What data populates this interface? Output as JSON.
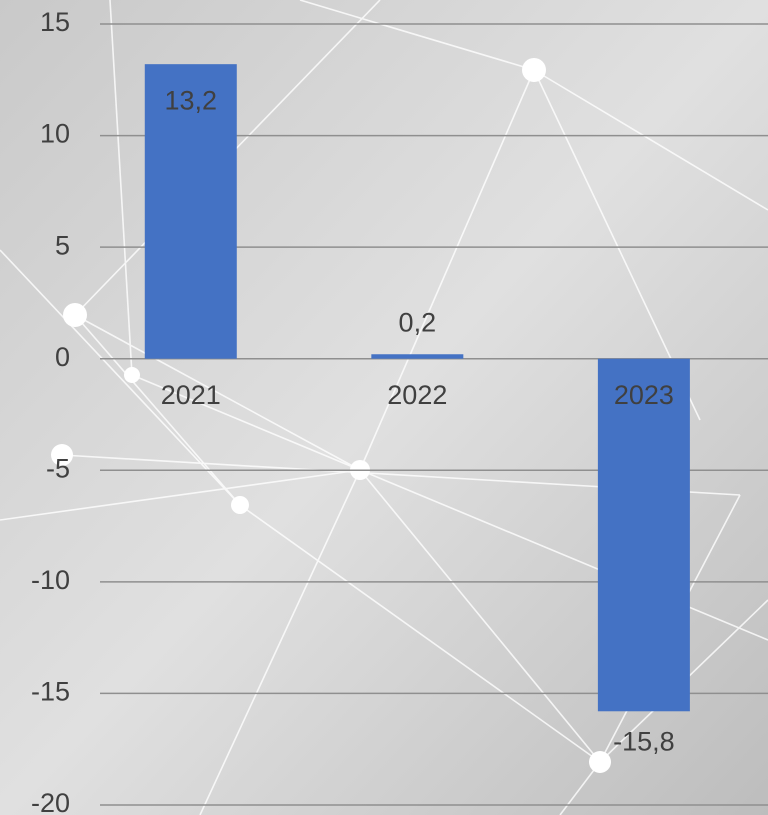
{
  "chart_data": {
    "type": "bar",
    "categories": [
      "2021",
      "2022",
      "2023"
    ],
    "values": [
      13.2,
      0.2,
      -15.8
    ],
    "value_labels": [
      "13,2",
      "0,2",
      "-15,8"
    ],
    "color": "#4472c4",
    "ylim": [
      -20,
      15
    ],
    "yticks": [
      -20,
      -15,
      -10,
      -5,
      0,
      5,
      10,
      15
    ],
    "grid": true
  }
}
